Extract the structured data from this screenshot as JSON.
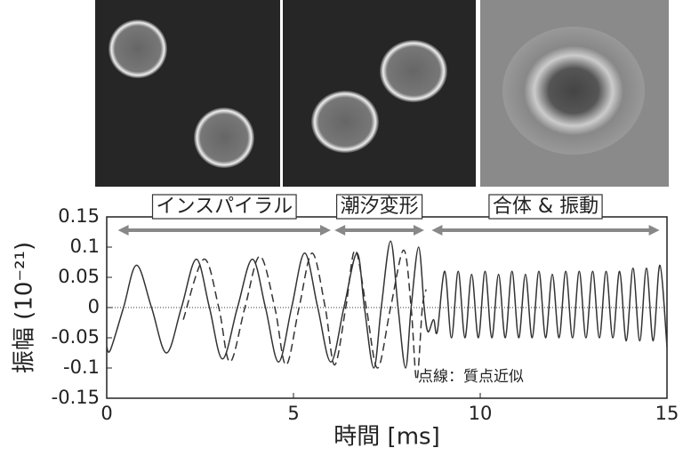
{
  "chart_data": {
    "type": "line",
    "xlabel": "時間 [ms]",
    "ylabel": "振幅 (10⁻²¹)",
    "xlim": [
      0,
      15
    ],
    "xticks": [
      0,
      5,
      10,
      15
    ],
    "ylim": [
      -0.15,
      0.15
    ],
    "yticks": [
      0.15,
      0.1,
      0.05,
      0,
      -0.05,
      -0.1,
      -0.15
    ],
    "phases": [
      {
        "label": "インスパイラル",
        "start": 0.3,
        "end": 6.0
      },
      {
        "label": "潮汐変形",
        "start": 6.1,
        "end": 8.5
      },
      {
        "label": "合体 & 振動",
        "start": 8.7,
        "end": 14.8
      }
    ],
    "annotation": "点線：質点近似",
    "series": [
      {
        "color": "#333333",
        "dashed": false,
        "x": [
          0,
          0.1,
          0.45,
          0.8,
          1.2,
          1.6,
          2.0,
          2.4,
          2.75,
          3.1,
          3.5,
          3.9,
          4.25,
          4.6,
          4.95,
          5.3,
          5.65,
          6.0,
          6.35,
          6.7,
          6.9,
          7.15,
          7.35,
          7.6,
          7.8,
          8.0,
          8.15,
          8.35,
          8.5,
          8.6,
          8.75,
          8.85,
          9.05,
          9.23,
          9.41,
          9.59,
          9.77,
          9.95,
          10.13,
          10.31,
          10.49,
          10.67,
          10.85,
          11.03,
          11.21,
          11.39,
          11.57,
          11.75,
          11.93,
          12.11,
          12.29,
          12.47,
          12.65,
          12.83,
          13.01,
          13.19,
          13.37,
          13.55,
          13.73,
          13.91,
          14.09,
          14.27,
          14.45,
          14.63,
          14.81,
          15
        ],
        "values": [
          -0.065,
          -0.07,
          0,
          0.07,
          0,
          -0.075,
          0,
          0.08,
          0,
          -0.085,
          0,
          0.08,
          0,
          -0.09,
          0,
          0.09,
          0,
          -0.09,
          0,
          0.09,
          0,
          -0.1,
          0,
          0.11,
          0,
          -0.1,
          0,
          0.1,
          0,
          -0.04,
          -0.02,
          -0.04,
          0.06,
          -0.05,
          0.06,
          -0.05,
          0.055,
          -0.05,
          0.06,
          -0.05,
          0.055,
          -0.05,
          0.06,
          -0.05,
          0.055,
          -0.05,
          0.06,
          -0.05,
          0.055,
          -0.05,
          0.06,
          -0.05,
          0.06,
          -0.05,
          0.06,
          -0.05,
          0.06,
          -0.05,
          0.06,
          -0.055,
          0.065,
          -0.055,
          0.065,
          -0.055,
          0.07,
          -0.065
        ]
      },
      {
        "color": "#333333",
        "dashed": true,
        "x": [
          2.05,
          2.6,
          3.0,
          3.3,
          3.7,
          4.1,
          4.5,
          4.8,
          5.15,
          5.5,
          5.85,
          6.1,
          6.4,
          6.65,
          6.95,
          7.25,
          7.6,
          7.95,
          8.15,
          8.3,
          8.45,
          8.55
        ],
        "values": [
          -0.02,
          0.08,
          0,
          -0.09,
          0,
          0.085,
          0,
          -0.095,
          0,
          0.09,
          0,
          -0.095,
          0,
          0.095,
          0,
          -0.1,
          0,
          0.095,
          0,
          -0.12,
          0,
          0.03
        ]
      }
    ]
  }
}
